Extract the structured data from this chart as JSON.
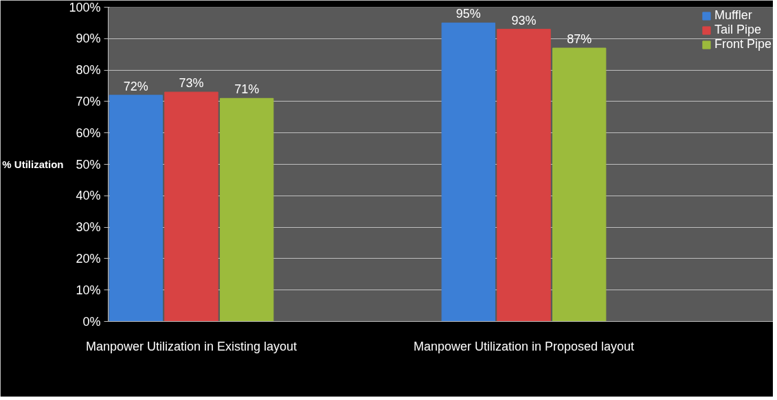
{
  "chart_data": {
    "type": "bar",
    "ylabel": "% Utilization",
    "categories": [
      "Manpower Utilization in Existing layout",
      "Manpower Utilization in Proposed layout"
    ],
    "series": [
      {
        "name": "Muffler",
        "color": "#3c7fd6",
        "values": [
          72,
          95
        ],
        "value_labels": [
          "72%",
          "95%"
        ]
      },
      {
        "name": "Tail Pipe",
        "color": "#d84343",
        "values": [
          73,
          93
        ],
        "value_labels": [
          "73%",
          "93%"
        ]
      },
      {
        "name": "Front Pipe",
        "color": "#9cbb3c",
        "values": [
          71,
          87
        ],
        "value_labels": [
          "71%",
          "87%"
        ]
      }
    ],
    "ylim": [
      0,
      100
    ],
    "yticks": [
      {
        "value": 0,
        "label": "0%"
      },
      {
        "value": 10,
        "label": "10%"
      },
      {
        "value": 20,
        "label": "20%"
      },
      {
        "value": 30,
        "label": "30%"
      },
      {
        "value": 40,
        "label": "40%"
      },
      {
        "value": 50,
        "label": "50%"
      },
      {
        "value": 60,
        "label": "60%"
      },
      {
        "value": 70,
        "label": "70%"
      },
      {
        "value": 80,
        "label": "80%"
      },
      {
        "value": 90,
        "label": "90%"
      },
      {
        "value": 100,
        "label": "100%"
      }
    ],
    "grid": "y",
    "legend": "top right"
  }
}
